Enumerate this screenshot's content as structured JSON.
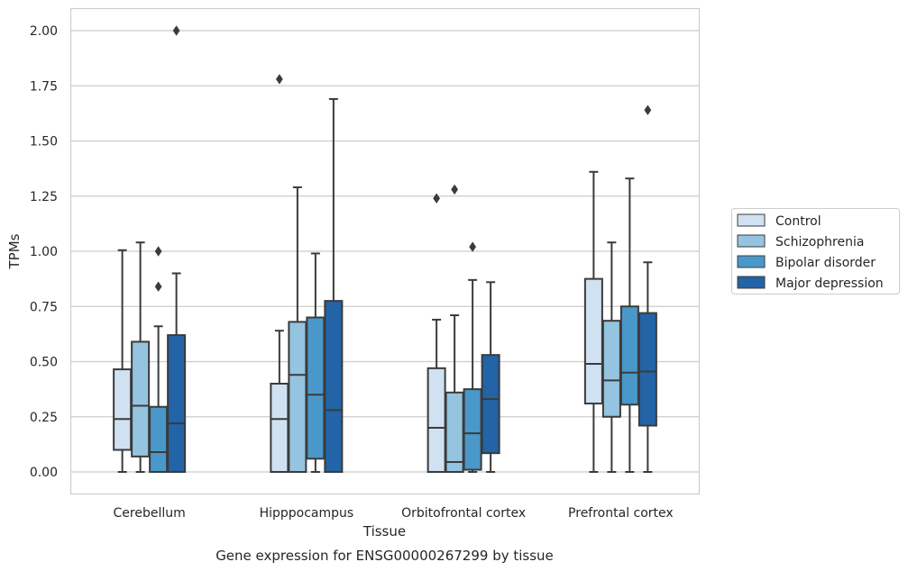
{
  "chart_data": {
    "type": "box",
    "xlabel": "Tissue",
    "ylabel": "TPMs",
    "caption": "Gene expression for ENSG00000267299 by tissue",
    "ylim": [
      -0.1,
      2.1
    ],
    "yticks": [
      "0.00",
      "0.25",
      "0.50",
      "0.75",
      "1.00",
      "1.25",
      "1.50",
      "1.75",
      "2.00"
    ],
    "ytick_values": [
      0,
      0.25,
      0.5,
      0.75,
      1.0,
      1.25,
      1.5,
      1.75,
      2.0
    ],
    "grid": "horizontal",
    "legend_position": "right",
    "categories": [
      "Cerebellum",
      "Hipppocampus",
      "Orbitofrontal cortex",
      "Prefrontal cortex"
    ],
    "series": [
      {
        "name": "Control",
        "color": "#d0e1f2",
        "boxes": [
          {
            "whislo": 0.0,
            "q1": 0.1,
            "med": 0.24,
            "q3": 0.465,
            "whishi": 1.005,
            "fliers": []
          },
          {
            "whislo": 0.0,
            "q1": 0.0,
            "med": 0.24,
            "q3": 0.4,
            "whishi": 0.64,
            "fliers": [
              1.78
            ]
          },
          {
            "whislo": 0.0,
            "q1": 0.0,
            "med": 0.2,
            "q3": 0.47,
            "whishi": 0.69,
            "fliers": [
              1.24
            ]
          },
          {
            "whislo": 0.0,
            "q1": 0.31,
            "med": 0.49,
            "q3": 0.875,
            "whishi": 1.36,
            "fliers": []
          }
        ]
      },
      {
        "name": "Schizophrenia",
        "color": "#94c4df",
        "boxes": [
          {
            "whislo": 0.0,
            "q1": 0.07,
            "med": 0.3,
            "q3": 0.59,
            "whishi": 1.04,
            "fliers": []
          },
          {
            "whislo": 0.0,
            "q1": 0.0,
            "med": 0.44,
            "q3": 0.68,
            "whishi": 1.29,
            "fliers": []
          },
          {
            "whislo": 0.0,
            "q1": 0.0,
            "med": 0.045,
            "q3": 0.36,
            "whishi": 0.71,
            "fliers": [
              1.28
            ]
          },
          {
            "whislo": 0.0,
            "q1": 0.25,
            "med": 0.415,
            "q3": 0.685,
            "whishi": 1.04,
            "fliers": []
          }
        ]
      },
      {
        "name": "Bipolar disorder",
        "color": "#4a98c9",
        "boxes": [
          {
            "whislo": 0.0,
            "q1": 0.0,
            "med": 0.09,
            "q3": 0.295,
            "whishi": 0.66,
            "fliers": [
              0.84,
              1.0
            ]
          },
          {
            "whislo": 0.0,
            "q1": 0.06,
            "med": 0.35,
            "q3": 0.7,
            "whishi": 0.99,
            "fliers": []
          },
          {
            "whislo": 0.0,
            "q1": 0.01,
            "med": 0.175,
            "q3": 0.375,
            "whishi": 0.87,
            "fliers": [
              1.02
            ]
          },
          {
            "whislo": 0.0,
            "q1": 0.305,
            "med": 0.45,
            "q3": 0.75,
            "whishi": 1.33,
            "fliers": []
          }
        ]
      },
      {
        "name": "Major depression",
        "color": "#2264a6",
        "boxes": [
          {
            "whislo": 0.0,
            "q1": 0.0,
            "med": 0.22,
            "q3": 0.62,
            "whishi": 0.9,
            "fliers": [
              2.0
            ]
          },
          {
            "whislo": 0.0,
            "q1": 0.0,
            "med": 0.28,
            "q3": 0.775,
            "whishi": 1.69,
            "fliers": []
          },
          {
            "whislo": 0.0,
            "q1": 0.085,
            "med": 0.33,
            "q3": 0.53,
            "whishi": 0.86,
            "fliers": []
          },
          {
            "whislo": 0.0,
            "q1": 0.21,
            "med": 0.455,
            "q3": 0.72,
            "whishi": 0.95,
            "fliers": [
              1.64
            ]
          }
        ]
      }
    ]
  }
}
